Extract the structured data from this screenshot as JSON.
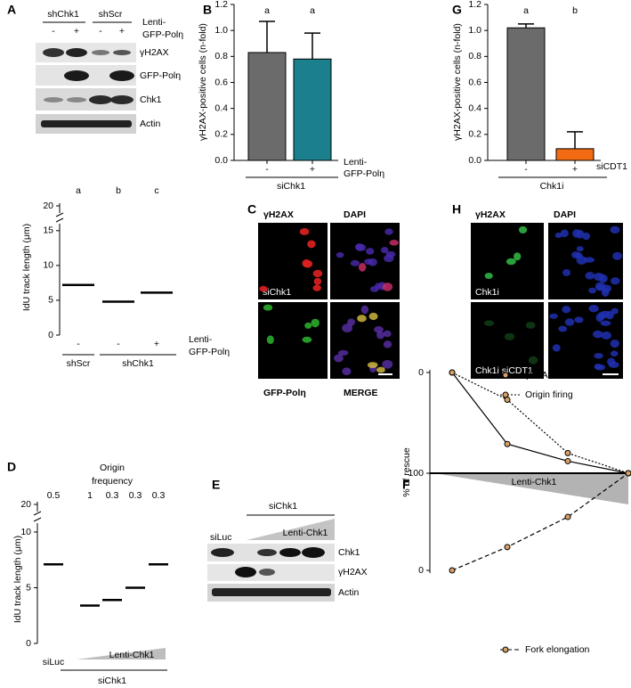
{
  "panel_labels": [
    "A",
    "B",
    "C",
    "D",
    "E",
    "F",
    "G",
    "H"
  ],
  "blot_a": {
    "groups": [
      "shChk1",
      "shScr"
    ],
    "lanes": [
      "-",
      "+",
      "-",
      "+"
    ],
    "treatment": [
      "Lenti-",
      "GFP-Polη"
    ],
    "rows": [
      "γH2AX",
      "GFP-Polη",
      "Chk1",
      "Actin"
    ]
  },
  "image_c": {
    "channels": [
      "γH2AX",
      "DAPI"
    ],
    "condition": "siChk1",
    "bottom_channels": [
      "GFP-Polη",
      "MERGE"
    ]
  },
  "image_h": {
    "channels": [
      "γH2AX",
      "DAPI"
    ],
    "conditions": [
      "Chk1i",
      "Chk1i siCDT1"
    ]
  },
  "blot_e": {
    "group": "siChk1",
    "control": "siLuc",
    "gradient": "Lenti-Chk1",
    "rows": [
      "Chk1",
      "γH2AX",
      "Actin"
    ]
  },
  "chart_data": [
    {
      "type": "dot",
      "y_label": "IdU track length (μm)",
      "categories": [
        "-",
        "-",
        "+"
      ],
      "groups": [
        "shScr",
        "shChk1"
      ],
      "treatment": [
        "Lenti-",
        "GFP-Polη"
      ],
      "values": [
        7.2,
        4.8,
        6.1
      ],
      "significance": [
        "a",
        "b",
        "c"
      ],
      "ylim": [
        0,
        16
      ],
      "yticks": [
        0,
        5,
        10,
        15
      ],
      "break_tick": 20
    },
    {
      "type": "bar",
      "y_label": "γH2AX-positive cells (n-fold)",
      "categories": [
        "-",
        "+"
      ],
      "group": "siChk1",
      "treatment": [
        "Lenti-",
        "GFP-Polη"
      ],
      "values": [
        0.83,
        0.78
      ],
      "errors": [
        0.24,
        0.2
      ],
      "colors": [
        "#6b6b6b",
        "#1b7f8e"
      ],
      "significance": [
        "a",
        "a"
      ],
      "ylim": [
        0,
        1.2
      ],
      "yticks": [
        {
          "value": 0,
          "label": "0.0"
        },
        0.2,
        0.4,
        0.6,
        0.8,
        {
          "value": 1,
          "label": "1.0"
        },
        1.2
      ]
    },
    {
      "type": "bar",
      "y_label": "γH2AX-positive cells (n-fold)",
      "categories": [
        "-",
        "+"
      ],
      "group": "Chk1i",
      "treatment": [
        "siCDT1"
      ],
      "values": [
        1.02,
        0.09
      ],
      "errors": [
        0.03,
        0.13
      ],
      "colors": [
        "#6b6b6b",
        "#f26b12"
      ],
      "significance": [
        "a",
        "b"
      ],
      "ylim": [
        0,
        1.2
      ],
      "yticks": [
        {
          "value": 0,
          "label": "0.0"
        },
        0.2,
        0.4,
        0.6,
        0.8,
        {
          "value": 1,
          "label": "1.0"
        },
        1.2
      ]
    },
    {
      "type": "dot",
      "title": [
        "Origin",
        "frequency"
      ],
      "y_label": "IdU track length (μm)",
      "categories": [
        "siLuc",
        null,
        null,
        null,
        null
      ],
      "group": "siChk1",
      "gradient": "Lenti-Chk1",
      "values": [
        7.1,
        3.4,
        3.9,
        5.0,
        7.1
      ],
      "origin_frequency": [
        0.5,
        1,
        0.3,
        0.3,
        0.3
      ],
      "ylim": [
        0,
        10.8
      ],
      "yticks": [
        0,
        5,
        10
      ],
      "break_tick": 20
    },
    {
      "type": "line",
      "y_label": "% of rescue",
      "categories": [
        null,
        null,
        null,
        null
      ],
      "gradient": "Lenti-Chk1",
      "marker_color": "#d9a066",
      "series": [
        {
          "name": "γH2AX",
          "color": "#000000",
          "dash": "solid",
          "values": [
            0,
            71,
            88,
            100
          ]
        },
        {
          "name": "Origin firing",
          "color": "#000000",
          "dash": "dotted",
          "values": [
            0,
            27,
            80,
            100
          ]
        },
        {
          "name": "Fork elongation",
          "color": "#000000",
          "dash": "dashed",
          "axis": "y2",
          "values": [
            0,
            24,
            55,
            100
          ]
        }
      ],
      "ylim": [
        100,
        0
      ],
      "yticks": [
        0,
        100
      ],
      "y2lim": [
        0,
        100
      ],
      "y2ticks": [
        0
      ]
    }
  ]
}
